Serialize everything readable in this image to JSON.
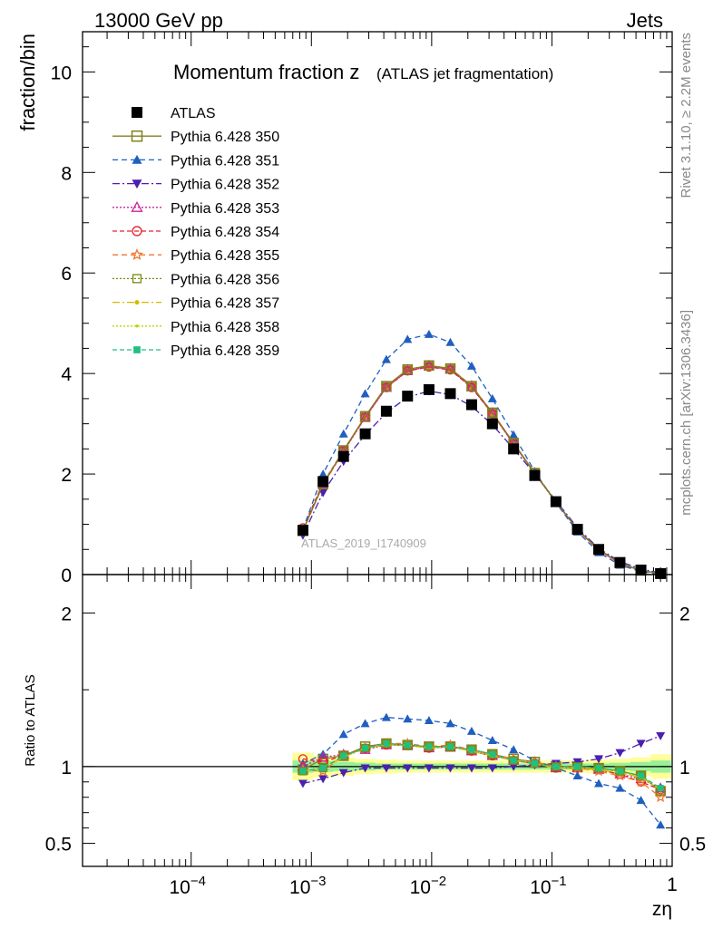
{
  "header": {
    "left": "13000 GeV pp",
    "right": "Jets",
    "side_right": "Rivet 3.1.10, ≥ 2.2M events",
    "side_right2": "mcplots.cern.ch [arXiv:1306.3436]"
  },
  "chart_data": [
    {
      "type": "scatter",
      "title_main": "Momentum fraction z",
      "title_sub": "(ATLAS jet fragmentation)",
      "ylabel": "fraction/bin",
      "xlabel": "zη",
      "analysis_tag": "ATLAS_2019_I1740909",
      "xscale": "log",
      "xlim": [
        1.25e-05,
        1.0
      ],
      "ylim": [
        0,
        10.8
      ],
      "yticks": [
        0,
        2,
        4,
        6,
        8,
        10
      ],
      "xtick_labels": [
        "10^-4",
        "10^-3",
        "10^-2",
        "10^-1",
        "1"
      ],
      "legend_position": "top-left",
      "x": [
        0.00085,
        0.00125,
        0.00185,
        0.0028,
        0.0042,
        0.0063,
        0.0095,
        0.0143,
        0.0215,
        0.032,
        0.048,
        0.072,
        0.108,
        0.163,
        0.245,
        0.368,
        0.55,
        0.8
      ],
      "series": [
        {
          "name": "ATLAS",
          "color": "#000000",
          "marker": "square-filled",
          "values": [
            0.88,
            1.85,
            2.35,
            2.8,
            3.25,
            3.55,
            3.68,
            3.6,
            3.38,
            3.0,
            2.5,
            1.97,
            1.45,
            0.9,
            0.5,
            0.24,
            0.09,
            0.02
          ]
        },
        {
          "name": "Pythia 6.428 350",
          "color": "#808020",
          "marker": "square-open",
          "values": [
            0.87,
            1.8,
            2.47,
            3.15,
            3.75,
            4.08,
            4.16,
            4.1,
            3.75,
            3.22,
            2.62,
            2.02,
            1.45,
            0.9,
            0.5,
            0.23,
            0.08,
            0.02
          ]
        },
        {
          "name": "Pythia 6.428 351",
          "color": "#1f5fbf",
          "marker": "triangle-up",
          "values": [
            0.9,
            2.0,
            2.8,
            3.6,
            4.28,
            4.68,
            4.78,
            4.62,
            4.15,
            3.5,
            2.78,
            2.05,
            1.43,
            0.85,
            0.44,
            0.19,
            0.06,
            0.01
          ]
        },
        {
          "name": "Pythia 6.428 352",
          "color": "#4b1fb0",
          "marker": "triangle-down",
          "values": [
            0.78,
            1.63,
            2.25,
            2.78,
            3.22,
            3.53,
            3.65,
            3.58,
            3.35,
            2.98,
            2.5,
            2.0,
            1.47,
            0.93,
            0.52,
            0.26,
            0.11,
            0.03
          ]
        },
        {
          "name": "Pythia 6.428 353",
          "color": "#cc2299",
          "marker": "triangle-open",
          "values": [
            0.88,
            1.8,
            2.45,
            3.12,
            3.72,
            4.05,
            4.14,
            4.08,
            3.73,
            3.2,
            2.6,
            2.01,
            1.44,
            0.89,
            0.49,
            0.22,
            0.08,
            0.02
          ]
        },
        {
          "name": "Pythia 6.428 354",
          "color": "#e8202a",
          "marker": "circle-open",
          "values": [
            0.93,
            1.82,
            2.47,
            3.13,
            3.72,
            4.05,
            4.13,
            4.07,
            3.72,
            3.2,
            2.6,
            2.01,
            1.44,
            0.89,
            0.49,
            0.22,
            0.08,
            0.02
          ]
        },
        {
          "name": "Pythia 6.428 355",
          "color": "#f07830",
          "marker": "star-open",
          "values": [
            0.86,
            1.78,
            2.45,
            3.13,
            3.74,
            4.08,
            4.16,
            4.1,
            3.76,
            3.22,
            2.62,
            2.02,
            1.44,
            0.89,
            0.48,
            0.22,
            0.08,
            0.016
          ]
        },
        {
          "name": "Pythia 6.428 356",
          "color": "#7a8a10",
          "marker": "square-open-small",
          "values": [
            0.87,
            1.8,
            2.46,
            3.14,
            3.74,
            4.07,
            4.15,
            4.09,
            3.74,
            3.21,
            2.61,
            2.02,
            1.45,
            0.9,
            0.5,
            0.23,
            0.08,
            0.02
          ]
        },
        {
          "name": "Pythia 6.428 357",
          "color": "#d4b800",
          "marker": "dot",
          "values": [
            0.87,
            1.79,
            2.45,
            3.13,
            3.73,
            4.06,
            4.14,
            4.08,
            3.73,
            3.2,
            2.6,
            2.01,
            1.44,
            0.89,
            0.49,
            0.22,
            0.08,
            0.02
          ]
        },
        {
          "name": "Pythia 6.428 358",
          "color": "#b8d400",
          "marker": "dot-small",
          "values": [
            0.87,
            1.79,
            2.45,
            3.13,
            3.73,
            4.06,
            4.14,
            4.08,
            3.73,
            3.2,
            2.6,
            2.01,
            1.44,
            0.89,
            0.49,
            0.22,
            0.08,
            0.02
          ]
        },
        {
          "name": "Pythia 6.428 359",
          "color": "#20c080",
          "marker": "square-filled-small",
          "values": [
            0.87,
            1.8,
            2.46,
            3.14,
            3.74,
            4.07,
            4.15,
            4.09,
            3.74,
            3.21,
            2.61,
            2.02,
            1.45,
            0.9,
            0.5,
            0.23,
            0.08,
            0.02
          ]
        }
      ]
    },
    {
      "type": "scatter",
      "ylabel": "Ratio to ATLAS",
      "xscale": "log",
      "ylim": [
        0.35,
        2.25
      ],
      "yticks": [
        0.5,
        1,
        2
      ],
      "reference_line": 1.0,
      "band_inner_halfwidth": [
        0.04,
        0.035,
        0.03,
        0.025,
        0.02,
        0.02,
        0.02,
        0.02,
        0.02,
        0.02,
        0.02,
        0.02,
        0.02,
        0.02,
        0.02,
        0.025,
        0.03,
        0.04
      ],
      "band_outer_halfwidth": [
        0.09,
        0.07,
        0.06,
        0.05,
        0.045,
        0.04,
        0.04,
        0.04,
        0.04,
        0.04,
        0.04,
        0.04,
        0.04,
        0.04,
        0.045,
        0.05,
        0.06,
        0.08
      ],
      "ratios": [
        {
          "name": "Pythia 6.428 350",
          "values": [
            0.98,
            1.05,
            1.07,
            1.13,
            1.15,
            1.14,
            1.13,
            1.13,
            1.11,
            1.08,
            1.05,
            1.03,
            1.0,
            1.0,
            0.99,
            0.97,
            0.94,
            0.84
          ]
        },
        {
          "name": "Pythia 6.428 351",
          "values": [
            1.02,
            1.08,
            1.21,
            1.28,
            1.32,
            1.31,
            1.3,
            1.28,
            1.23,
            1.17,
            1.11,
            1.04,
            0.99,
            0.94,
            0.89,
            0.86,
            0.78,
            0.62
          ]
        },
        {
          "name": "Pythia 6.428 352",
          "values": [
            0.89,
            0.92,
            0.96,
            0.99,
            0.99,
            0.99,
            0.99,
            0.99,
            0.99,
            0.99,
            1.0,
            1.01,
            1.02,
            1.03,
            1.05,
            1.09,
            1.15,
            1.2
          ]
        },
        {
          "name": "Pythia 6.428 353",
          "values": [
            1.0,
            1.06,
            1.08,
            1.11,
            1.14,
            1.14,
            1.12,
            1.13,
            1.1,
            1.07,
            1.04,
            1.02,
            0.99,
            0.99,
            0.98,
            0.95,
            0.92,
            0.86
          ]
        },
        {
          "name": "Pythia 6.428 354",
          "values": [
            1.05,
            1.03,
            1.07,
            1.12,
            1.14,
            1.14,
            1.12,
            1.13,
            1.1,
            1.07,
            1.04,
            1.02,
            0.99,
            0.99,
            0.98,
            0.95,
            0.9,
            0.85
          ]
        },
        {
          "name": "Pythia 6.428 355",
          "values": [
            0.98,
            0.97,
            1.07,
            1.12,
            1.15,
            1.15,
            1.13,
            1.14,
            1.11,
            1.08,
            1.05,
            1.03,
            1.0,
            0.99,
            0.97,
            0.94,
            0.9,
            0.8
          ]
        },
        {
          "name": "Pythia 6.428 356",
          "values": [
            0.97,
            0.99,
            1.07,
            1.12,
            1.15,
            1.14,
            1.13,
            1.13,
            1.11,
            1.08,
            1.04,
            1.02,
            1.0,
            1.0,
            0.99,
            0.97,
            0.94,
            0.84
          ]
        },
        {
          "name": "Pythia 6.428 357",
          "values": [
            0.97,
            0.99,
            1.06,
            1.12,
            1.14,
            1.14,
            1.12,
            1.13,
            1.1,
            1.07,
            1.04,
            1.02,
            0.99,
            0.99,
            0.98,
            0.96,
            0.93,
            0.85
          ]
        },
        {
          "name": "Pythia 6.428 358",
          "values": [
            0.97,
            0.99,
            1.06,
            1.12,
            1.14,
            1.14,
            1.12,
            1.13,
            1.1,
            1.07,
            1.04,
            1.02,
            0.99,
            0.99,
            0.98,
            0.96,
            0.93,
            0.85
          ]
        },
        {
          "name": "Pythia 6.428 359",
          "values": [
            0.97,
            0.99,
            1.07,
            1.12,
            1.15,
            1.14,
            1.13,
            1.13,
            1.11,
            1.08,
            1.04,
            1.02,
            1.0,
            1.0,
            0.99,
            0.97,
            0.94,
            0.86
          ]
        }
      ]
    }
  ]
}
